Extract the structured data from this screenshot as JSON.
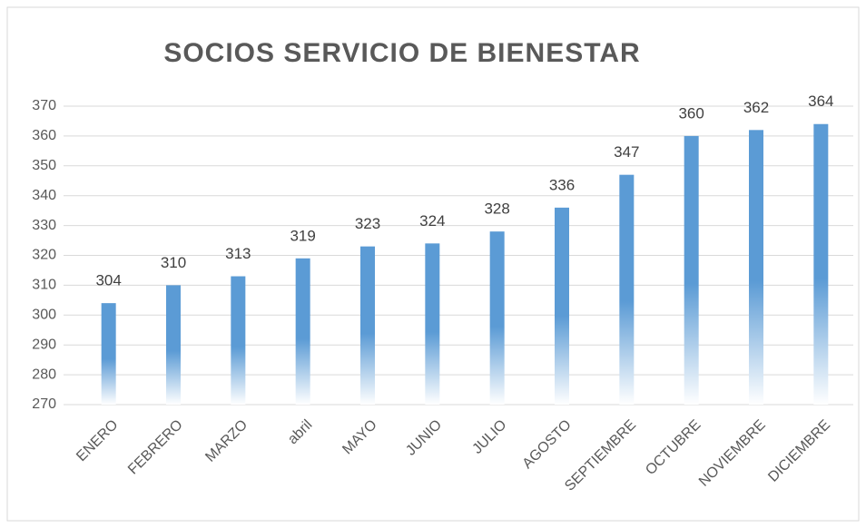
{
  "chart_data": {
    "type": "bar",
    "title": "SOCIOS SERVICIO DE BIENESTAR",
    "categories": [
      "ENERO",
      "FEBRERO",
      "MARZO",
      "abril",
      "MAYO",
      "JUNIO",
      "JULIO",
      "AGOSTO",
      "SEPTIEMBRE",
      "OCTUBRE",
      "NOVIEMBRE",
      "DICIEMBRE"
    ],
    "values": [
      304,
      310,
      313,
      319,
      323,
      324,
      328,
      336,
      347,
      360,
      362,
      364
    ],
    "color": "#5b9bd5",
    "ylim": [
      270,
      370
    ],
    "yticks": [
      270,
      280,
      290,
      300,
      310,
      320,
      330,
      340,
      350,
      360,
      370
    ],
    "grid": true
  }
}
